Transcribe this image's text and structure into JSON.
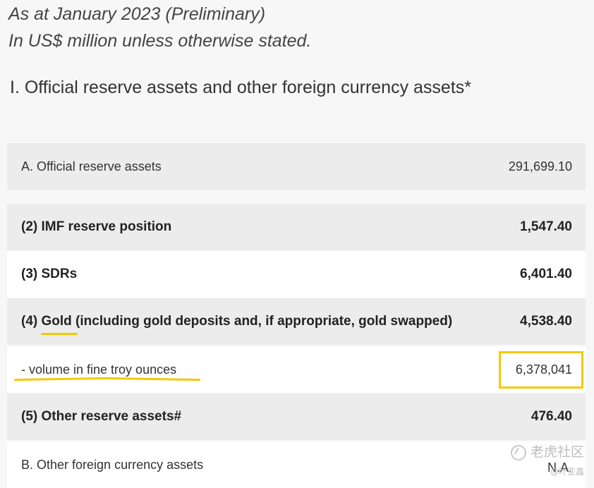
{
  "header": {
    "line1": "As at January 2023 (Preliminary)",
    "line2": "In US$ million unless otherwise stated."
  },
  "section_title": "I. Official reserve assets and other foreign currency assets*",
  "rows": [
    {
      "label": "A. Official reserve assets",
      "value": "291,699.10"
    },
    {
      "label": "(2) IMF reserve position",
      "value": "1,547.40"
    },
    {
      "label": "(3) SDRs",
      "value": "6,401.40"
    },
    {
      "label_prefix": "(4) ",
      "label_highlight": "Gold",
      "label_suffix": " (including gold deposits and, if appropriate, gold swapped)",
      "value": "4,538.40"
    },
    {
      "label": "- volume in fine troy ounces",
      "value": "6,378,041"
    },
    {
      "label": "(5) Other reserve assets#",
      "value": "476.40"
    },
    {
      "label": "B. Other foreign currency assets",
      "value": "N.A."
    }
  ],
  "watermark": {
    "line1": "老虎社区",
    "line2": "@叶亚鑫"
  },
  "colors": {
    "highlight": "#f5c800",
    "row_grey": "#ececec",
    "row_white": "#ffffff"
  }
}
